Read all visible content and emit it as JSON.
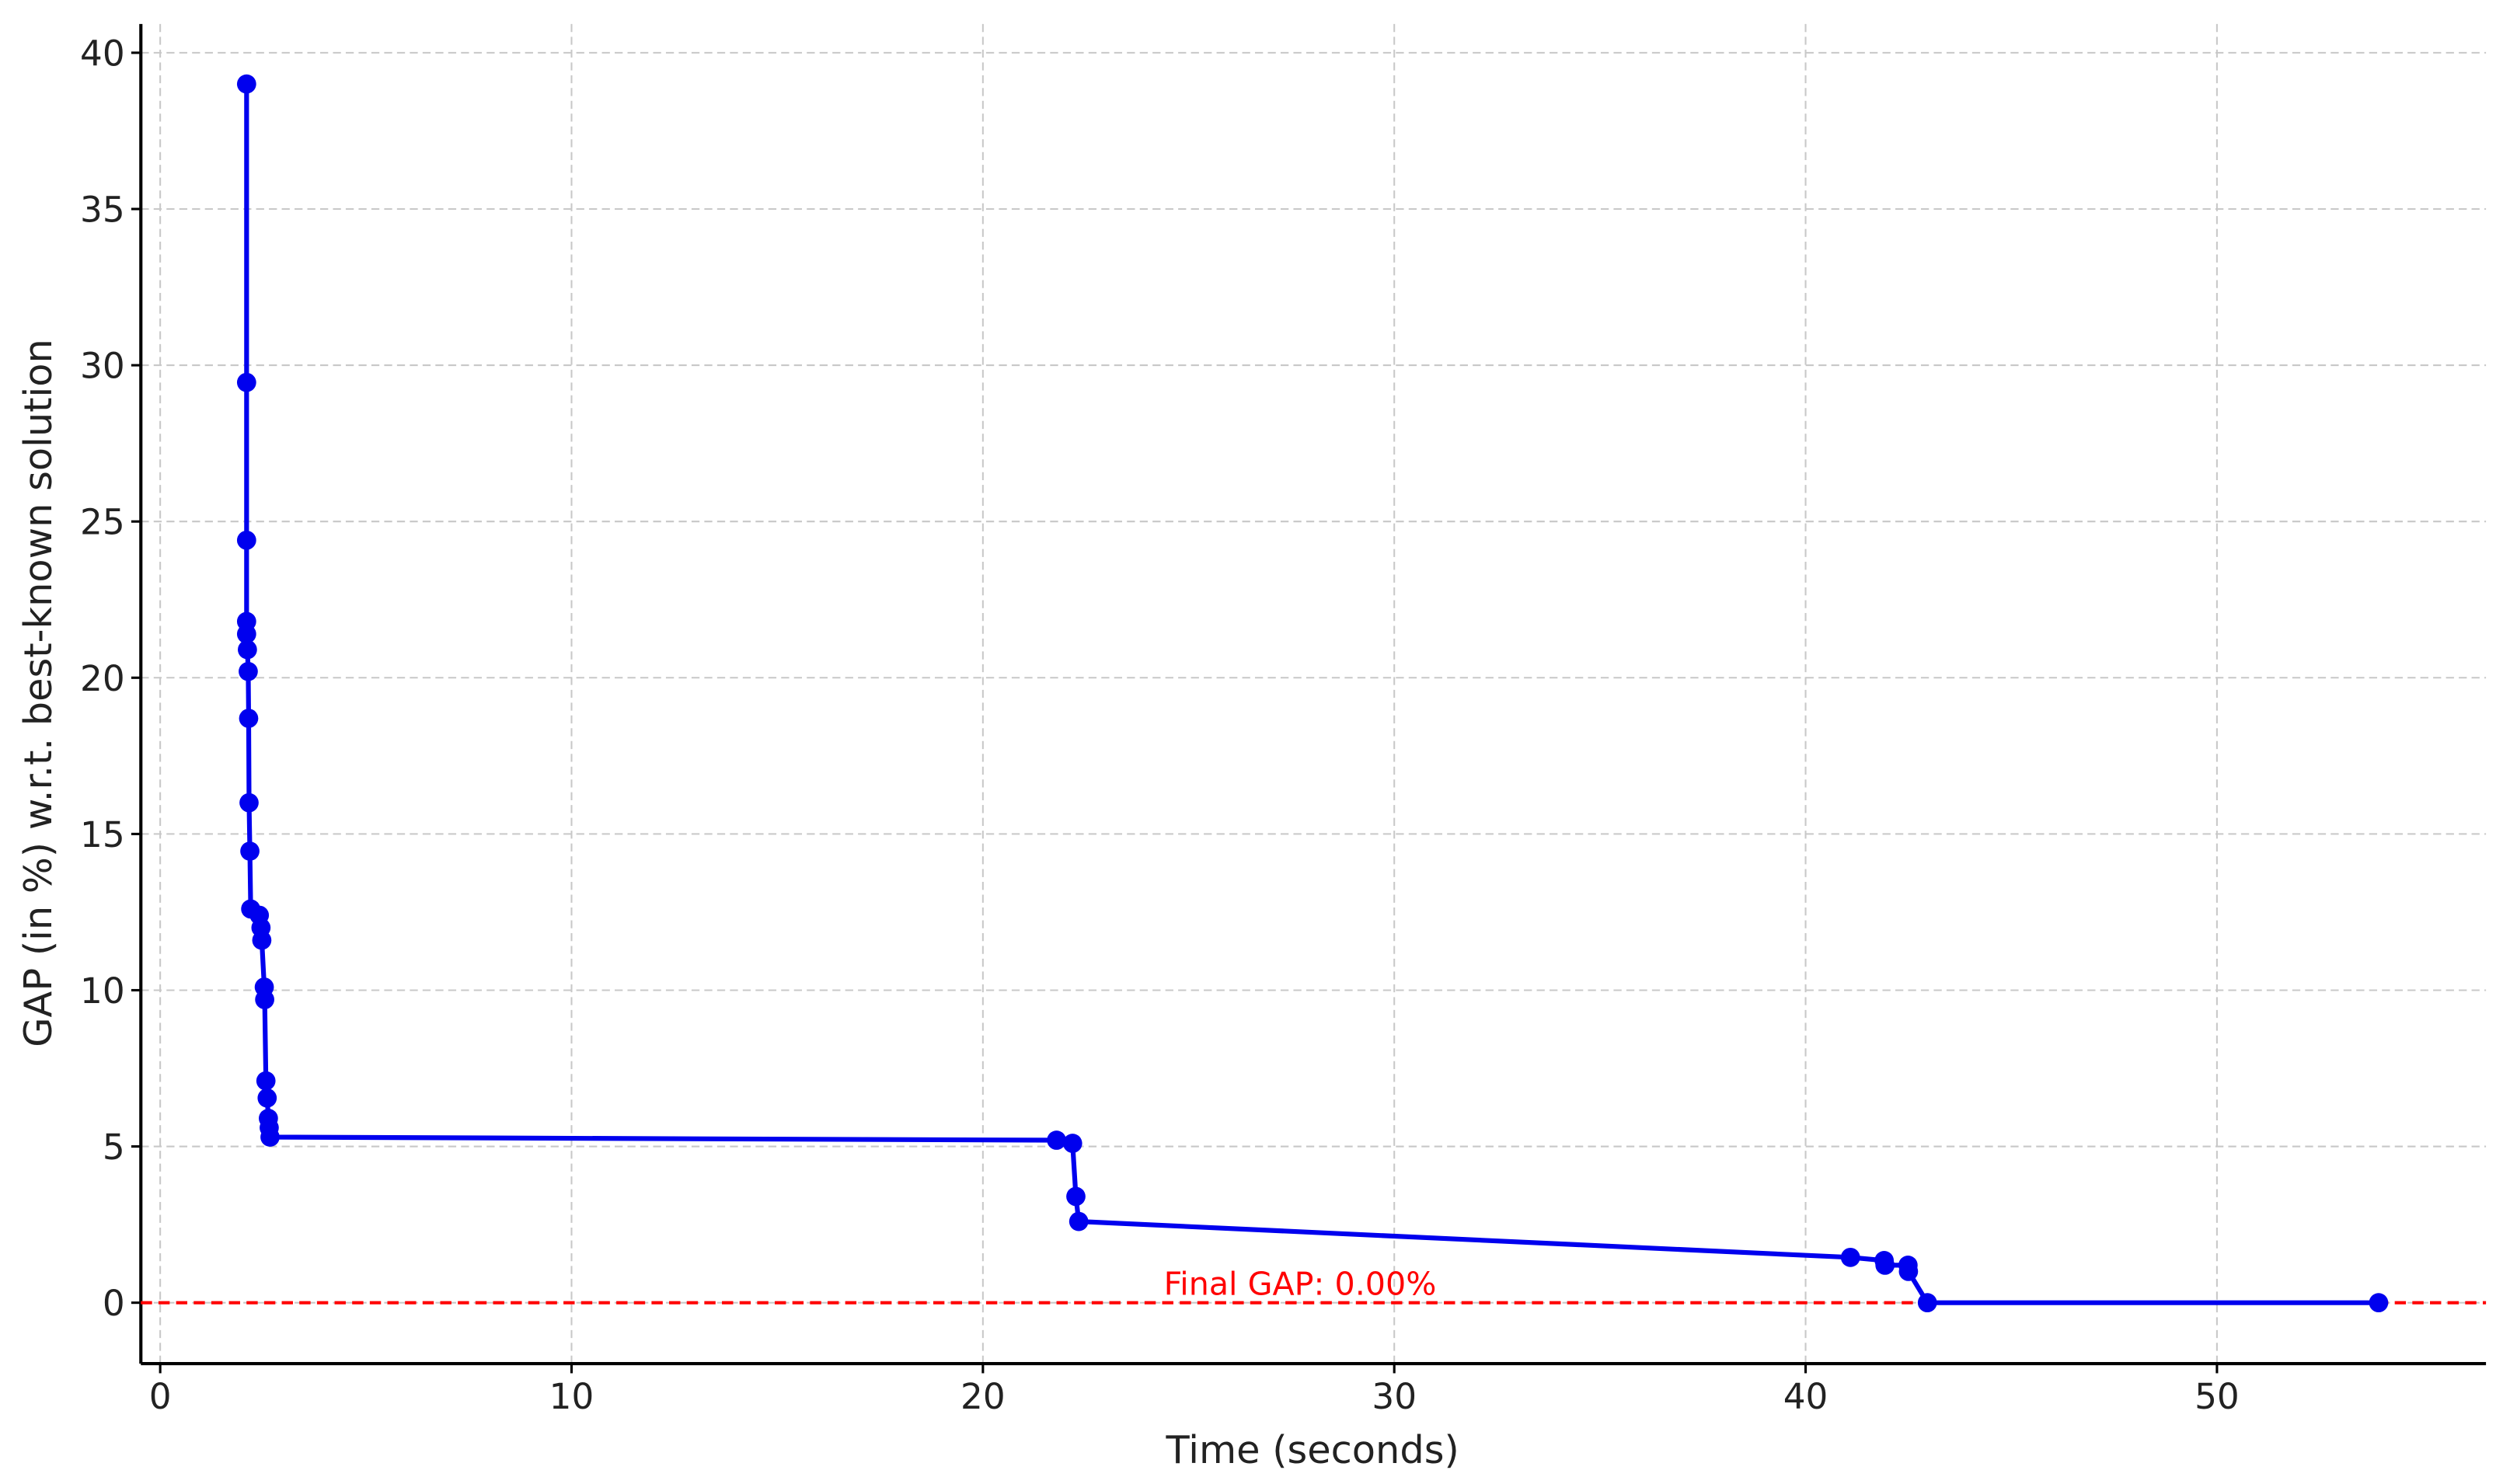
{
  "chart_data": {
    "type": "line",
    "xlabel": "Time (seconds)",
    "ylabel": "GAP (in %) w.r.t. best-known solution",
    "annotation": "Final GAP: 0.00%",
    "reference_line": {
      "y": 0,
      "color": "#ff0000"
    },
    "x": [
      2.1,
      2.1,
      2.1,
      2.1,
      2.1,
      2.12,
      2.14,
      2.15,
      2.16,
      2.18,
      2.2,
      2.41,
      2.45,
      2.47,
      2.53,
      2.54,
      2.57,
      2.6,
      2.63,
      2.65,
      2.67,
      21.79,
      22.18,
      22.26,
      22.33,
      41.09,
      41.91,
      41.93,
      42.49,
      42.5,
      42.96,
      53.93
    ],
    "series": [
      {
        "name": "GAP",
        "color": "#0000ee",
        "values": [
          39.0,
          29.45,
          24.4,
          21.8,
          21.4,
          20.9,
          20.2,
          18.7,
          16.0,
          14.45,
          12.6,
          12.4,
          12.0,
          11.6,
          10.1,
          9.7,
          7.1,
          6.55,
          5.9,
          5.6,
          5.3,
          5.2,
          5.1,
          3.4,
          2.6,
          1.45,
          1.35,
          1.2,
          1.2,
          1.0,
          0,
          0
        ]
      }
    ],
    "xlim": [
      -0.47,
      56.54
    ],
    "ylim": [
      -1.95,
      40.92
    ],
    "xticks": [
      0,
      10,
      20,
      30,
      40,
      50
    ],
    "yticks": [
      0,
      5,
      10,
      15,
      20,
      25,
      30,
      35,
      40
    ],
    "grid": true
  }
}
